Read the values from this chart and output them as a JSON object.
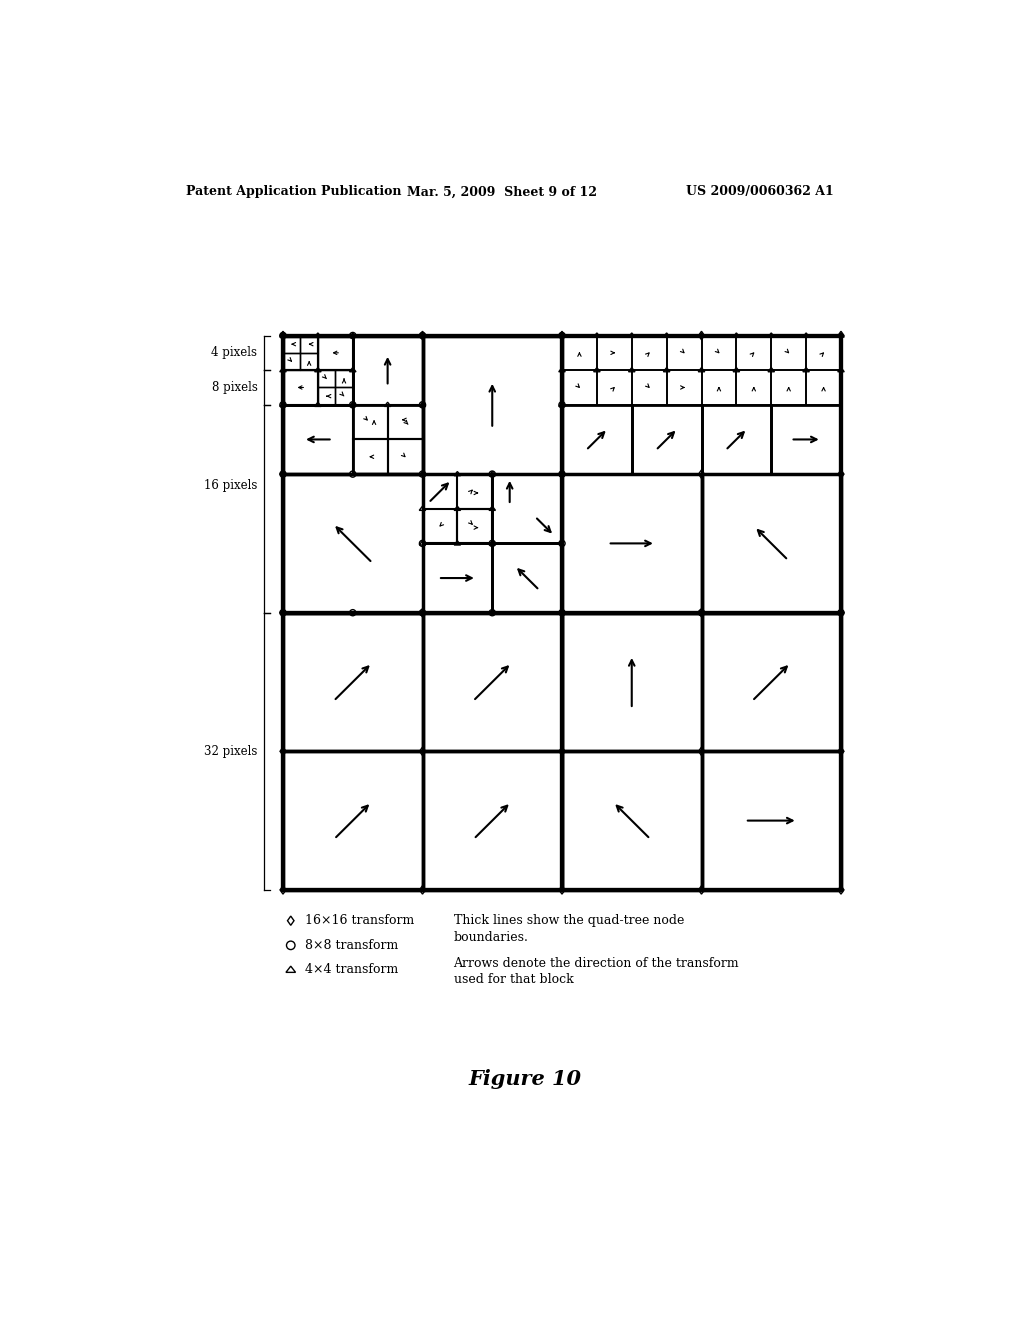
{
  "title": "Figure 10",
  "header_left": "Patent Application Publication",
  "header_mid": "Mar. 5, 2009  Sheet 9 of 12",
  "header_right": "US 2009/0060362 A1",
  "legend": [
    {
      "marker": "diamond",
      "label": "16×16 transform"
    },
    {
      "marker": "circle",
      "label": "8×8 transform"
    },
    {
      "marker": "triangle",
      "label": "4×4 transform"
    }
  ],
  "legend_note1": "Thick lines show the quad-tree node",
  "legend_note2": "boundaries.",
  "legend_note3": "Arrows denote the direction of the transform",
  "legend_note4": "used for that block",
  "background_color": "#ffffff"
}
